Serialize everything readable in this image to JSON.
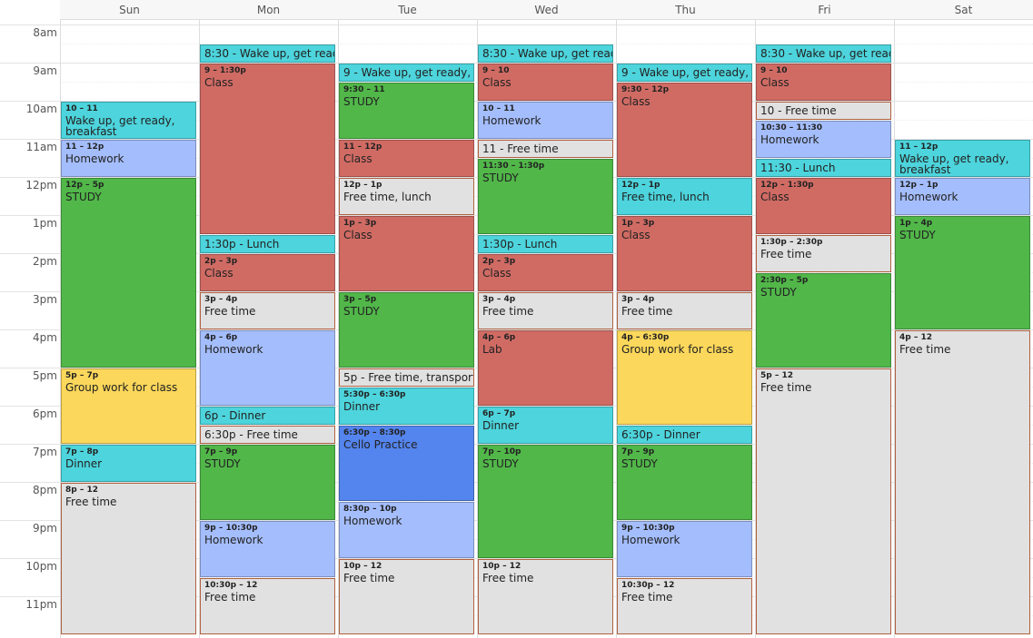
{
  "hours": [
    "8am",
    "9am",
    "10am",
    "11am",
    "12pm",
    "1pm",
    "2pm",
    "3pm",
    "4pm",
    "5pm",
    "6pm",
    "7pm",
    "8pm",
    "9pm",
    "10pm",
    "11pm"
  ],
  "days": [
    {
      "name": "Sun",
      "events": [
        {
          "time": "10 – 11",
          "title": "Wake up, get ready, breakfast",
          "color": "#4dd4dc"
        },
        {
          "time": "11 – 12p",
          "title": "Homework",
          "color": "#a4bdfc"
        },
        {
          "time": "12p – 5p",
          "title": "STUDY",
          "color": "#51b749"
        },
        {
          "time": "5p – 7p",
          "title": "Group work for class",
          "color": "#fbd75b"
        },
        {
          "time": "7p – 8p",
          "title": "Dinner",
          "color": "#4dd4dc"
        },
        {
          "time": "8p – 12",
          "title": "Free time",
          "color": "#e1e1e1"
        }
      ]
    },
    {
      "name": "Mon",
      "events": [
        {
          "label": "8:30 - Wake up, get ready",
          "color": "#4dd4dc"
        },
        {
          "time": "9 – 1:30p",
          "title": "Class",
          "color": "#d06b64"
        },
        {
          "label": "1:30p - Lunch",
          "color": "#4dd4dc"
        },
        {
          "time": "2p – 3p",
          "title": "Class",
          "color": "#d06b64"
        },
        {
          "time": "3p – 4p",
          "title": "Free time",
          "color": "#e1e1e1"
        },
        {
          "time": "4p – 6p",
          "title": "Homework",
          "color": "#a4bdfc"
        },
        {
          "label": "6p - Dinner",
          "color": "#4dd4dc"
        },
        {
          "label": "6:30p - Free time",
          "color": "#e1e1e1"
        },
        {
          "time": "7p – 9p",
          "title": "STUDY",
          "color": "#51b749"
        },
        {
          "time": "9p – 10:30p",
          "title": "Homework",
          "color": "#a4bdfc"
        },
        {
          "time": "10:30p – 12",
          "title": "Free time",
          "color": "#e1e1e1"
        }
      ]
    },
    {
      "name": "Tue",
      "events": [
        {
          "label": "9 - Wake up, get ready, br",
          "color": "#4dd4dc"
        },
        {
          "time": "9:30 – 11",
          "title": "STUDY",
          "color": "#51b749"
        },
        {
          "time": "11 – 12p",
          "title": "Class",
          "color": "#d06b64"
        },
        {
          "time": "12p – 1p",
          "title": "Free time, lunch",
          "color": "#e1e1e1"
        },
        {
          "time": "1p – 3p",
          "title": "Class",
          "color": "#d06b64"
        },
        {
          "time": "3p – 5p",
          "title": "STUDY",
          "color": "#51b749"
        },
        {
          "label": "5p - Free time, transporta",
          "color": "#e1e1e1"
        },
        {
          "time": "5:30p – 6:30p",
          "title": "Dinner",
          "color": "#4dd4dc"
        },
        {
          "time": "6:30p – 8:30p",
          "title": "Cello Practice",
          "color": "#5484ed"
        },
        {
          "time": "8:30p – 10p",
          "title": "Homework",
          "color": "#a4bdfc"
        },
        {
          "time": "10p – 12",
          "title": "Free time",
          "color": "#e1e1e1"
        }
      ]
    },
    {
      "name": "Wed",
      "events": [
        {
          "label": "8:30 - Wake up, get ready",
          "color": "#4dd4dc"
        },
        {
          "time": "9 – 10",
          "title": "Class",
          "color": "#d06b64"
        },
        {
          "time": "10 – 11",
          "title": "Homework",
          "color": "#a4bdfc"
        },
        {
          "label": "11 - Free time",
          "color": "#e1e1e1"
        },
        {
          "time": "11:30 – 1:30p",
          "title": "STUDY",
          "color": "#51b749"
        },
        {
          "label": "1:30p - Lunch",
          "color": "#4dd4dc"
        },
        {
          "time": "2p – 3p",
          "title": "Class",
          "color": "#d06b64"
        },
        {
          "time": "3p – 4p",
          "title": "Free time",
          "color": "#e1e1e1"
        },
        {
          "time": "4p – 6p",
          "title": "Lab",
          "color": "#d06b64"
        },
        {
          "time": "6p – 7p",
          "title": "Dinner",
          "color": "#4dd4dc"
        },
        {
          "time": "7p – 10p",
          "title": "STUDY",
          "color": "#51b749"
        },
        {
          "time": "10p – 12",
          "title": "Free time",
          "color": "#e1e1e1"
        }
      ]
    },
    {
      "name": "Thu",
      "events": [
        {
          "label": "9 - Wake up, get ready, br",
          "color": "#4dd4dc"
        },
        {
          "time": "9:30 – 12p",
          "title": "Class",
          "color": "#d06b64"
        },
        {
          "time": "12p – 1p",
          "title": "Free time, lunch",
          "color": "#4dd4dc"
        },
        {
          "time": "1p – 3p",
          "title": "Class",
          "color": "#d06b64"
        },
        {
          "time": "3p – 4p",
          "title": "Free time",
          "color": "#e1e1e1"
        },
        {
          "time": "4p – 6:30p",
          "title": "Group work for class",
          "color": "#fbd75b"
        },
        {
          "label": "6:30p - Dinner",
          "color": "#4dd4dc"
        },
        {
          "time": "7p – 9p",
          "title": "STUDY",
          "color": "#51b749"
        },
        {
          "time": "9p – 10:30p",
          "title": "Homework",
          "color": "#a4bdfc"
        },
        {
          "time": "10:30p – 12",
          "title": "Free time",
          "color": "#e1e1e1"
        }
      ]
    },
    {
      "name": "Fri",
      "events": [
        {
          "label": "8:30 - Wake up, get ready",
          "color": "#4dd4dc"
        },
        {
          "time": "9 – 10",
          "title": "Class",
          "color": "#d06b64"
        },
        {
          "label": "10 - Free time",
          "color": "#e1e1e1"
        },
        {
          "time": "10:30 – 11:30",
          "title": "Homework",
          "color": "#a4bdfc"
        },
        {
          "label": "11:30 - Lunch",
          "color": "#4dd4dc"
        },
        {
          "time": "12p – 1:30p",
          "title": "Class",
          "color": "#d06b64"
        },
        {
          "time": "1:30p – 2:30p",
          "title": "Free time",
          "color": "#e1e1e1"
        },
        {
          "time": "2:30p – 5p",
          "title": "STUDY",
          "color": "#51b749"
        },
        {
          "time": "5p – 12",
          "title": "Free time",
          "color": "#e1e1e1"
        }
      ]
    },
    {
      "name": "Sat",
      "events": [
        {
          "time": "11 – 12p",
          "title": "Wake up, get ready, breakfast",
          "color": "#4dd4dc"
        },
        {
          "time": "12p – 1p",
          "title": "Homework",
          "color": "#a4bdfc"
        },
        {
          "time": "1p – 4p",
          "title": "STUDY",
          "color": "#51b749"
        },
        {
          "time": "4p – 12",
          "title": "Free time",
          "color": "#e1e1e1"
        }
      ]
    }
  ]
}
